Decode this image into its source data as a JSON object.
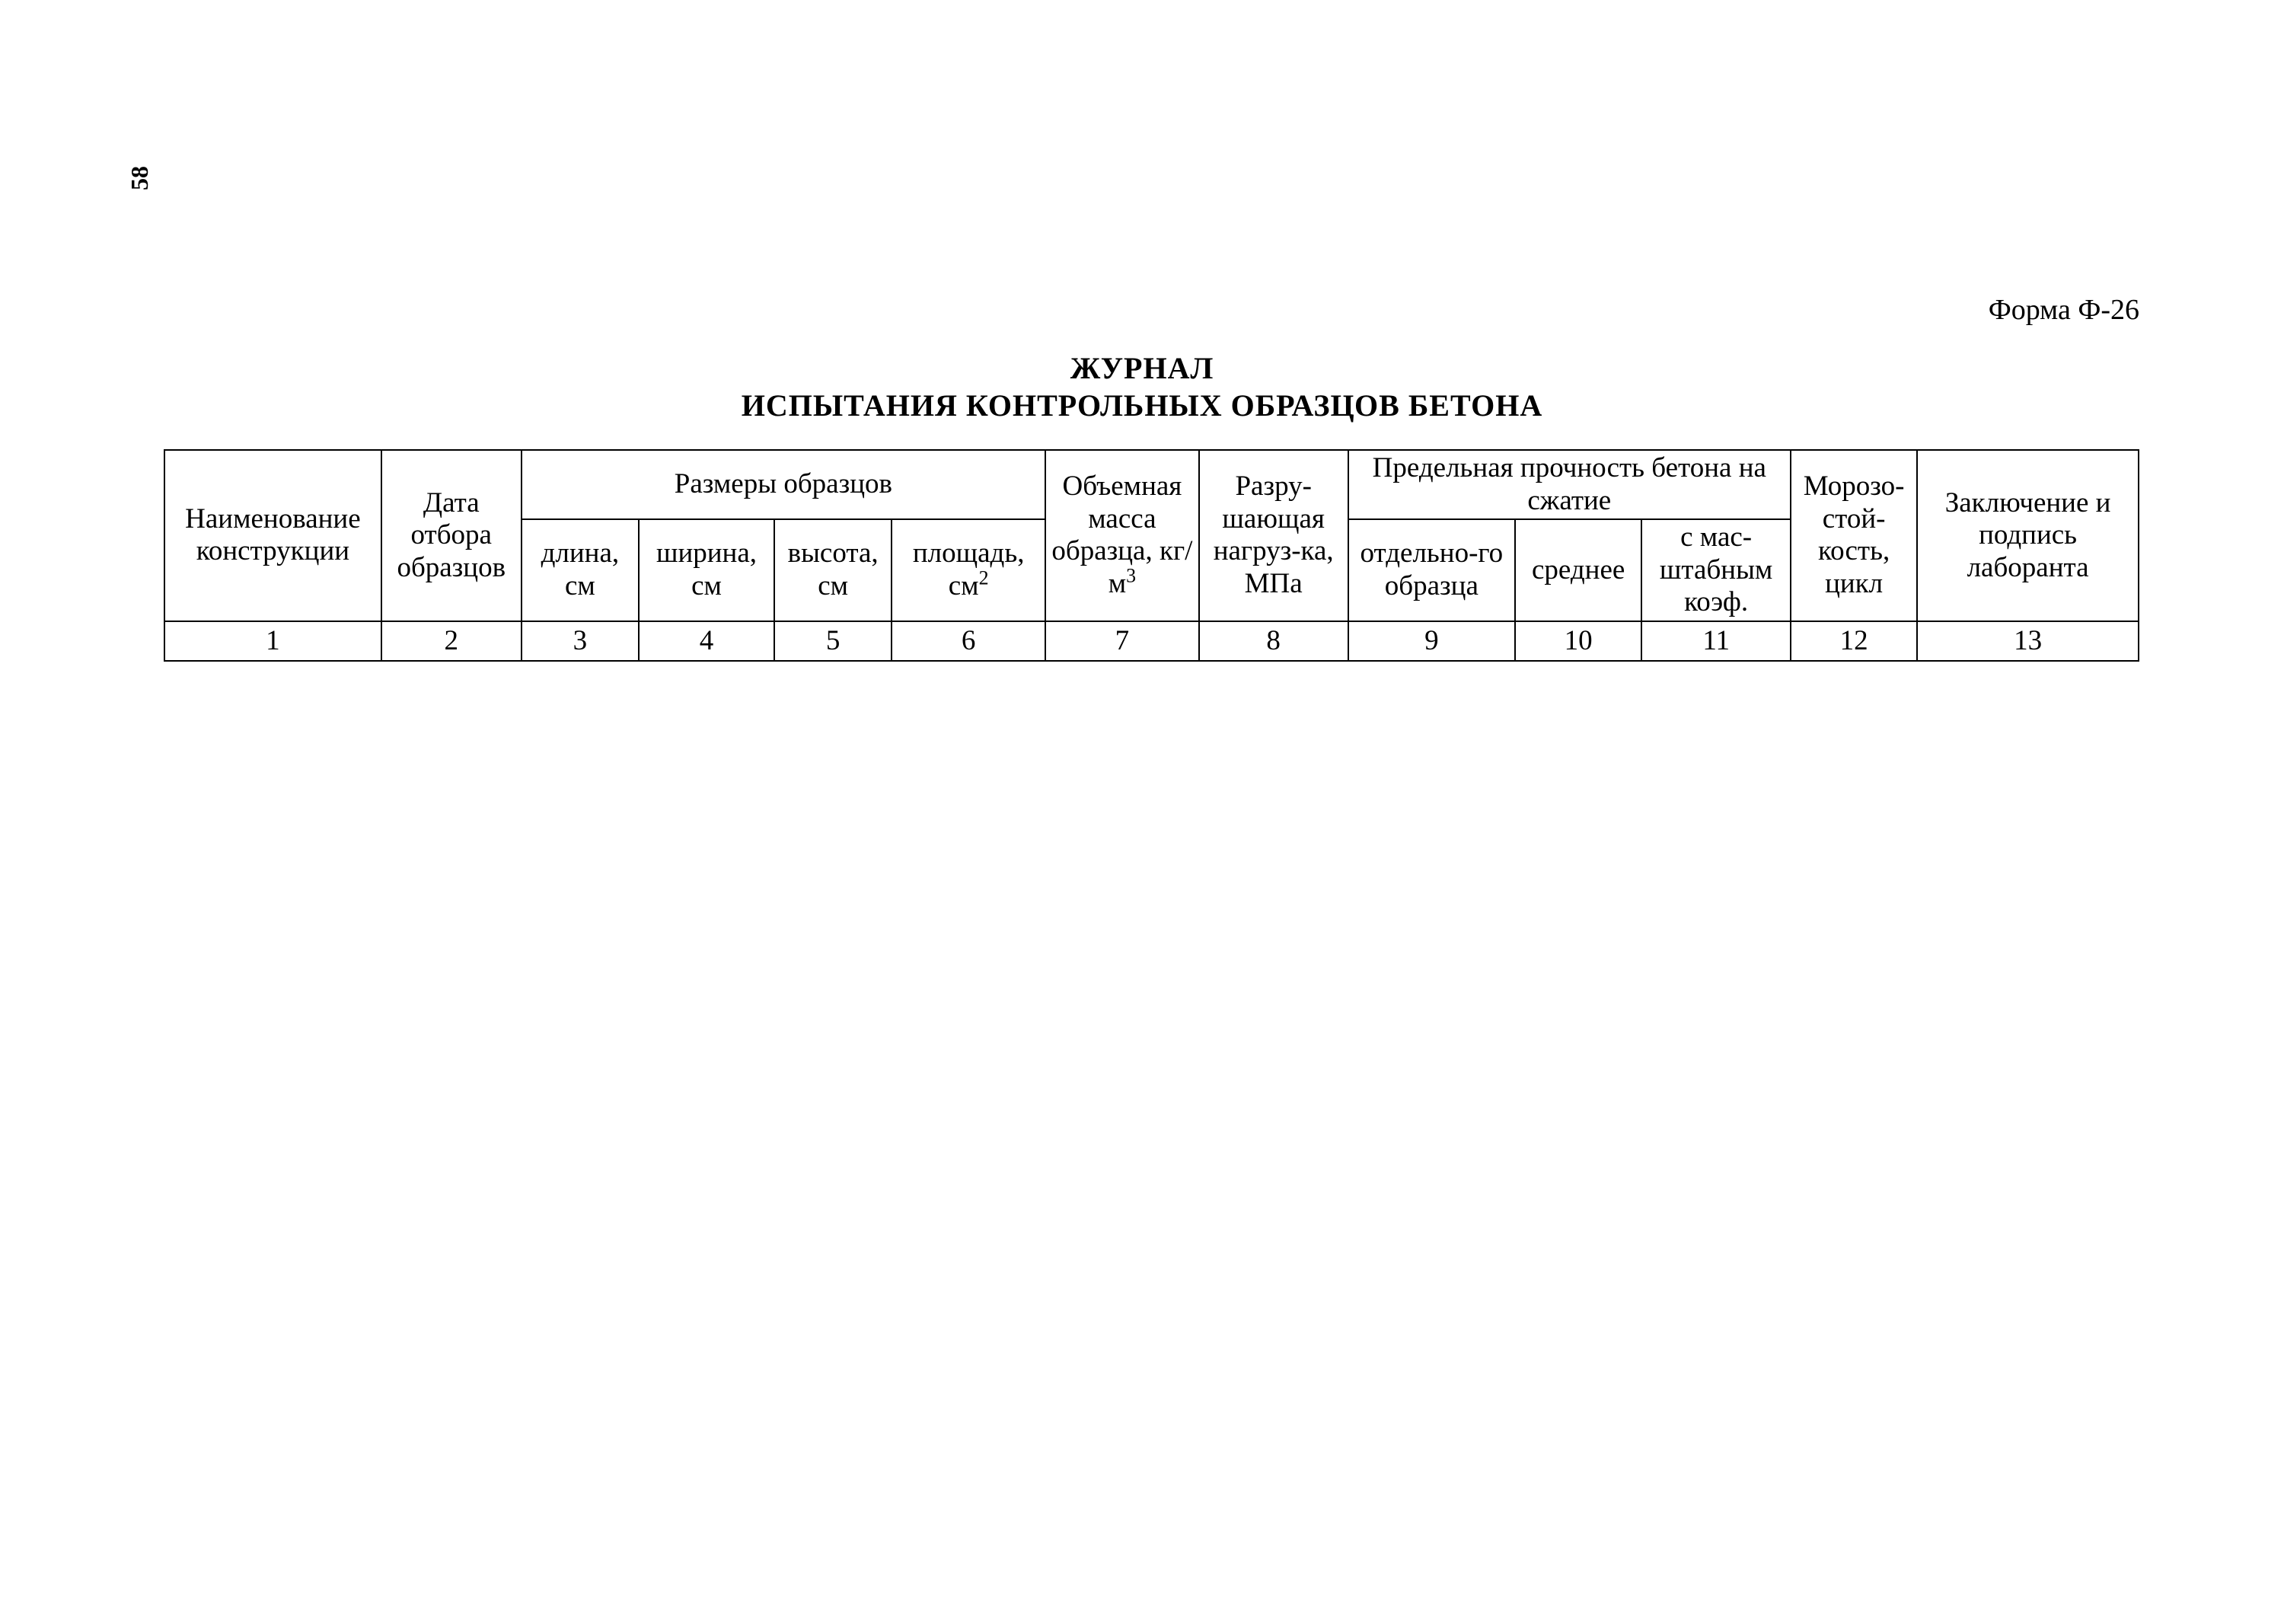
{
  "page_number": "58",
  "form_label": "Форма Ф-26",
  "title": {
    "line1": "ЖУРНАЛ",
    "line2": "ИСПЫТАНИЯ КОНТРОЛЬНЫХ ОБРАЗЦОВ БЕТОНА"
  },
  "table": {
    "columns": {
      "col1_width": 240,
      "col2_width": 155,
      "col3_width": 130,
      "col4_width": 150,
      "col5_width": 130,
      "col6_width": 170,
      "col7_width": 170,
      "col8_width": 165,
      "col9_width": 185,
      "col10_width": 140,
      "col11_width": 165,
      "col12_width": 140,
      "col13_width": 245
    },
    "headers": {
      "construction_name": "Наименование конструкции",
      "sampling_date": "Дата отбора образцов",
      "dimensions_group": "Размеры образцов",
      "length": "длина, см",
      "width": "ширина, см",
      "height": "высота, см",
      "area": "площадь, см",
      "area_sup": "2",
      "volume_mass": "Объемная масса образца, кг/м",
      "volume_mass_sup": "3",
      "breaking_load": "Разру-шающая нагруз-ка, МПа",
      "strength_group": "Предельная прочность бетона на сжатие",
      "individual": "отдельно-го образца",
      "average": "среднее",
      "scale_coef": "с мас-штабным коэф.",
      "frost_resistance": "Морозо-стой-кость, цикл",
      "conclusion": "Заключение и подпись лаборанта"
    },
    "number_row": [
      "1",
      "2",
      "3",
      "4",
      "5",
      "6",
      "7",
      "8",
      "9",
      "10",
      "11",
      "12",
      "13"
    ]
  },
  "styling": {
    "background_color": "#ffffff",
    "text_color": "#000000",
    "border_color": "#000000",
    "font_family": "Times New Roman",
    "header_fontsize": 37,
    "title_fontsize": 40
  }
}
